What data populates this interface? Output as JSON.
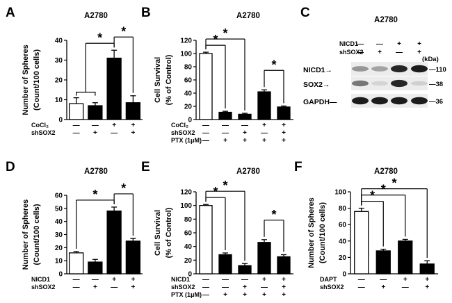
{
  "chart_data": [
    {
      "panel": "A",
      "type": "bar",
      "title": "A2780",
      "ylabel": [
        "Number of Spheres",
        "(Count/100 cells)"
      ],
      "ylim": [
        0,
        40
      ],
      "yticks": [
        0,
        10,
        20,
        30,
        40
      ],
      "values": [
        8,
        7,
        31,
        8.5
      ],
      "errors": [
        3,
        1.5,
        4,
        3.5
      ],
      "fills": [
        "white",
        "black",
        "black",
        "black"
      ],
      "conditions": [
        {
          "label": "CoCl₂",
          "signs": [
            "—",
            "—",
            "+",
            "+"
          ]
        },
        {
          "label": "shSOX2",
          "signs": [
            "—",
            "+",
            "—",
            "+"
          ]
        }
      ],
      "significance": [
        {
          "from": [
            0,
            1
          ],
          "to": 2,
          "label": "*"
        },
        {
          "from": [
            2
          ],
          "to": 3,
          "label": "*"
        }
      ]
    },
    {
      "panel": "B",
      "type": "bar",
      "title": "A2780",
      "ylabel": [
        "Cell Survival",
        "(% of Control)"
      ],
      "ylim": [
        0,
        120
      ],
      "yticks": [
        0,
        20,
        40,
        60,
        80,
        100,
        120
      ],
      "values": [
        100,
        11,
        8,
        42,
        19
      ],
      "errors": [
        2,
        1.5,
        1.5,
        3,
        1.5
      ],
      "fills": [
        "white",
        "black",
        "black",
        "black",
        "black"
      ],
      "conditions": [
        {
          "label": "CoCl₂",
          "signs": [
            "—",
            "—",
            "—",
            "+",
            "+"
          ]
        },
        {
          "label": "shSOX2",
          "signs": [
            "—",
            "—",
            "+",
            "—",
            "+"
          ]
        },
        {
          "label": "PTX (1μM)",
          "signs": [
            "—",
            "+",
            "+",
            "+",
            "+"
          ]
        }
      ],
      "significance": [
        {
          "from": [
            0
          ],
          "to": 1,
          "label": "*"
        },
        {
          "from": [
            0
          ],
          "to": 2,
          "label": "*"
        },
        {
          "from": [
            3
          ],
          "to": 4,
          "label": "*"
        }
      ]
    },
    {
      "panel": "D",
      "type": "bar",
      "title": "A2780",
      "ylabel": [
        "Number of Spheres",
        "(Count/100 cells)"
      ],
      "ylim": [
        0,
        60
      ],
      "yticks": [
        0,
        10,
        20,
        30,
        40,
        50,
        60
      ],
      "values": [
        16,
        9,
        48,
        25
      ],
      "errors": [
        1,
        2,
        3,
        2
      ],
      "fills": [
        "white",
        "black",
        "black",
        "black"
      ],
      "conditions": [
        {
          "label": "NICD1",
          "signs": [
            "—",
            "—",
            "+",
            "+"
          ]
        },
        {
          "label": "shSOX2",
          "signs": [
            "—",
            "+",
            "—",
            "+"
          ]
        }
      ],
      "significance": [
        {
          "from": [
            0
          ],
          "to": 2,
          "label": "*"
        },
        {
          "from": [
            2
          ],
          "to": 3,
          "label": "*"
        }
      ]
    },
    {
      "panel": "E",
      "type": "bar",
      "title": "A2780",
      "ylabel": [
        "Cell Survival",
        "(% of Control)"
      ],
      "ylim": [
        0,
        120
      ],
      "yticks": [
        0,
        20,
        40,
        60,
        80,
        100,
        120
      ],
      "values": [
        100,
        28,
        12,
        46,
        25
      ],
      "errors": [
        1.5,
        2.5,
        3,
        4,
        3
      ],
      "fills": [
        "white",
        "black",
        "black",
        "black",
        "black"
      ],
      "conditions": [
        {
          "label": "NICD1",
          "signs": [
            "—",
            "—",
            "—",
            "+",
            "+"
          ]
        },
        {
          "label": "shSOX2",
          "signs": [
            "—",
            "—",
            "+",
            "—",
            "+"
          ]
        },
        {
          "label": "PTX (1μM)",
          "signs": [
            "—",
            "+",
            "+",
            "+",
            "+"
          ]
        }
      ],
      "significance": [
        {
          "from": [
            0
          ],
          "to": 1,
          "label": "*"
        },
        {
          "from": [
            0
          ],
          "to": 2,
          "label": "*"
        },
        {
          "from": [
            3
          ],
          "to": 4,
          "label": "*"
        }
      ]
    },
    {
      "panel": "F",
      "type": "bar",
      "title": "A2780",
      "ylabel": [
        "Number of Spheres",
        "(Count/100 cells)"
      ],
      "ylim": [
        0,
        100
      ],
      "yticks": [
        0,
        20,
        40,
        60,
        80,
        100
      ],
      "values": [
        76,
        28,
        40,
        12
      ],
      "errors": [
        4,
        2,
        2,
        4
      ],
      "fills": [
        "white",
        "black",
        "black",
        "black"
      ],
      "conditions": [
        {
          "label": "DAPT",
          "signs": [
            "—",
            "—",
            "+",
            "+"
          ]
        },
        {
          "label": "shSOX2",
          "signs": [
            "—",
            "+",
            "—",
            "+"
          ]
        }
      ],
      "significance": [
        {
          "from": [
            0
          ],
          "to": 1,
          "label": "*"
        },
        {
          "from": [
            0
          ],
          "to": 2,
          "label": "*"
        },
        {
          "from": [
            0
          ],
          "to": 3,
          "label": "*"
        }
      ]
    }
  ],
  "western_blot": {
    "panel": "C",
    "title": "A2780",
    "conditions": [
      {
        "label": "NICD1",
        "signs": [
          "—",
          "—",
          "+",
          "+"
        ]
      },
      {
        "label": "shSOX2",
        "signs": [
          "—",
          "+",
          "—",
          "+"
        ]
      }
    ],
    "unit": "(kDa)",
    "bands": [
      {
        "label": "NICD1",
        "mw": "110",
        "intensity": [
          0.35,
          0.3,
          0.85,
          0.9
        ]
      },
      {
        "label": "SOX2",
        "mw": "38",
        "intensity": [
          0.5,
          0.08,
          0.85,
          0.1
        ]
      },
      {
        "label": "GAPDH",
        "mw": "36",
        "intensity": [
          0.9,
          0.9,
          0.9,
          0.9
        ]
      }
    ]
  }
}
